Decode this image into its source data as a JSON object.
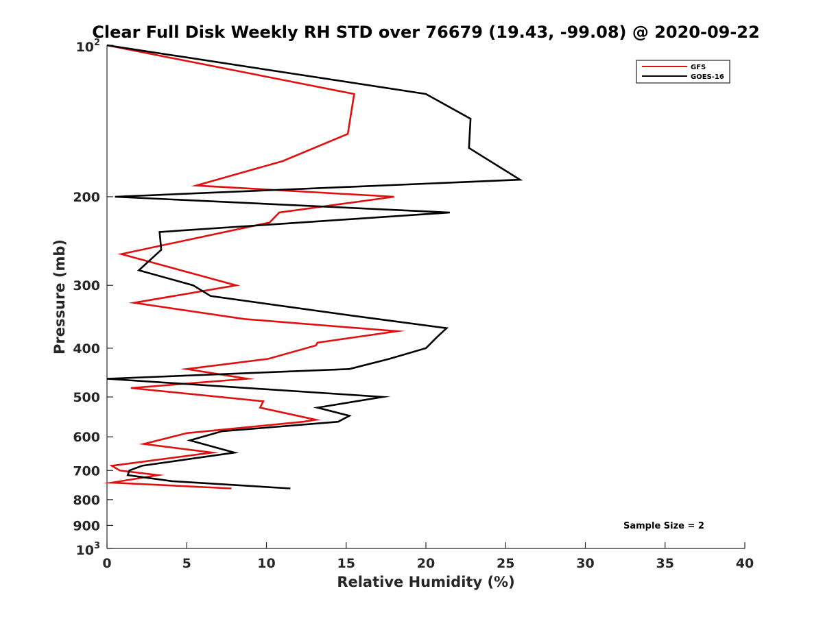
{
  "chart_data": {
    "type": "line",
    "title": "Clear Full Disk Weekly RH STD over 76679 (19.43, -99.08) @ 2020-09-22",
    "xlabel": "Relative Humidity (%)",
    "ylabel": "Pressure (mb)",
    "xlim": [
      0,
      40
    ],
    "ylim": [
      100,
      1000
    ],
    "y_scale": "log",
    "y_reversed": true,
    "grid": false,
    "legend_position": "top-right",
    "x_ticks": [
      "0",
      "5",
      "10",
      "15",
      "20",
      "25",
      "30",
      "35",
      "40"
    ],
    "y_ticks": [
      {
        "value": 100,
        "base": "10",
        "exp": "2"
      },
      {
        "value": 200,
        "label": "200"
      },
      {
        "value": 300,
        "label": "300"
      },
      {
        "value": 400,
        "label": "400"
      },
      {
        "value": 500,
        "label": "500"
      },
      {
        "value": 600,
        "label": "600"
      },
      {
        "value": 700,
        "label": "700"
      },
      {
        "value": 800,
        "label": "800"
      },
      {
        "value": 900,
        "label": "900"
      },
      {
        "value": 1000,
        "base": "10",
        "exp": "3"
      }
    ],
    "annotation": "Sample Size = 2",
    "series": [
      {
        "name": "GFS",
        "color": "#e01010",
        "points": [
          [
            0.0,
            100
          ],
          [
            15.5,
            125
          ],
          [
            15.1,
            150
          ],
          [
            11.0,
            170
          ],
          [
            5.6,
            190
          ],
          [
            18.0,
            200
          ],
          [
            10.8,
            215
          ],
          [
            10.2,
            225
          ],
          [
            0.9,
            260
          ],
          [
            8.1,
            300
          ],
          [
            1.7,
            325
          ],
          [
            8.6,
            350
          ],
          [
            18.2,
            370
          ],
          [
            13.2,
            390
          ],
          [
            13.1,
            395
          ],
          [
            10.1,
            420
          ],
          [
            5.0,
            440
          ],
          [
            8.8,
            460
          ],
          [
            1.5,
            480
          ],
          [
            9.8,
            510
          ],
          [
            9.6,
            525
          ],
          [
            13.1,
            555
          ],
          [
            12.3,
            560
          ],
          [
            5.0,
            590
          ],
          [
            2.3,
            620
          ],
          [
            6.6,
            645
          ],
          [
            0.3,
            685
          ],
          [
            0.8,
            700
          ],
          [
            3.2,
            715
          ],
          [
            0.3,
            740
          ],
          [
            7.8,
            760
          ]
        ]
      },
      {
        "name": "GOES-16",
        "color": "#000000",
        "points": [
          [
            0.0,
            100
          ],
          [
            20.0,
            125
          ],
          [
            22.8,
            140
          ],
          [
            22.7,
            160
          ],
          [
            25.9,
            185
          ],
          [
            0.5,
            200
          ],
          [
            21.5,
            215
          ],
          [
            3.3,
            235
          ],
          [
            3.4,
            255
          ],
          [
            2.0,
            280
          ],
          [
            5.4,
            300
          ],
          [
            6.5,
            315
          ],
          [
            15.5,
            345
          ],
          [
            21.3,
            365
          ],
          [
            20.7,
            380
          ],
          [
            20.0,
            400
          ],
          [
            17.7,
            420
          ],
          [
            15.2,
            440
          ],
          [
            0.0,
            460
          ],
          [
            17.3,
            500
          ],
          [
            13.2,
            525
          ],
          [
            15.2,
            545
          ],
          [
            14.5,
            560
          ],
          [
            7.2,
            585
          ],
          [
            5.2,
            610
          ],
          [
            8.0,
            645
          ],
          [
            2.2,
            685
          ],
          [
            1.4,
            700
          ],
          [
            1.3,
            715
          ],
          [
            4.1,
            735
          ],
          [
            11.5,
            760
          ]
        ]
      }
    ]
  }
}
